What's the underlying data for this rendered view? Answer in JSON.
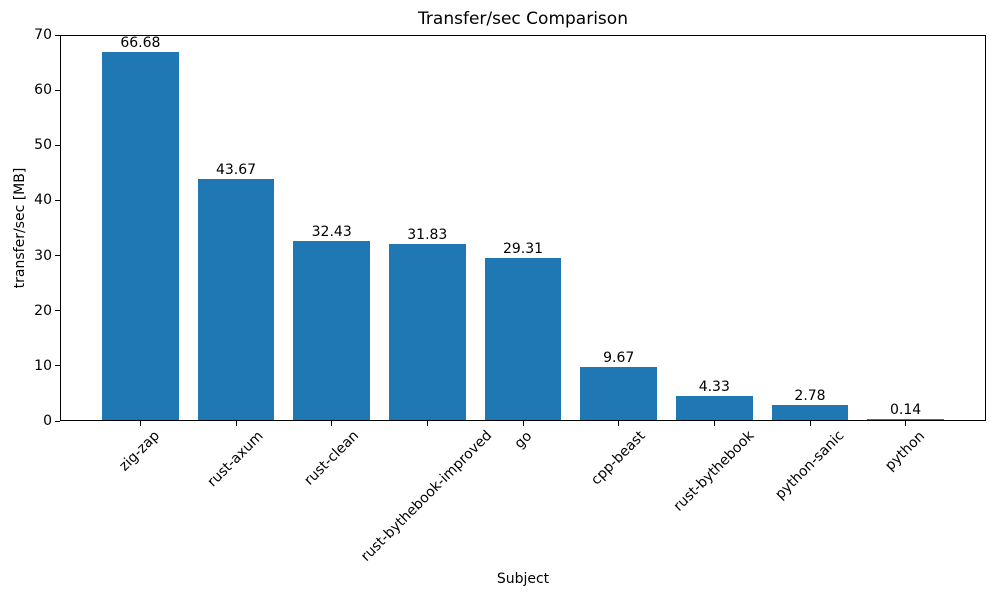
{
  "chart_data": {
    "type": "bar",
    "title": "Transfer/sec Comparison",
    "xlabel": "Subject",
    "ylabel": "transfer/sec [MB]",
    "categories": [
      "zig-zap",
      "rust-axum",
      "rust-clean",
      "rust-bythebook-improved",
      "go",
      "cpp-beast",
      "rust-bythebook",
      "python-sanic",
      "python"
    ],
    "values": [
      66.68,
      43.67,
      32.43,
      31.83,
      29.31,
      9.67,
      4.33,
      2.78,
      0.14
    ],
    "value_labels": [
      "66.68",
      "43.67",
      "32.43",
      "31.83",
      "29.31",
      "9.67",
      "4.33",
      "2.78",
      "0.14"
    ],
    "ylim": [
      0,
      70
    ],
    "yticks": [
      0,
      10,
      20,
      30,
      40,
      50,
      60,
      70
    ],
    "bar_color": "#1f77b4",
    "axis_color": "#000000",
    "grid": false,
    "legend_position": "none",
    "x_tick_rotation_deg": 45
  }
}
